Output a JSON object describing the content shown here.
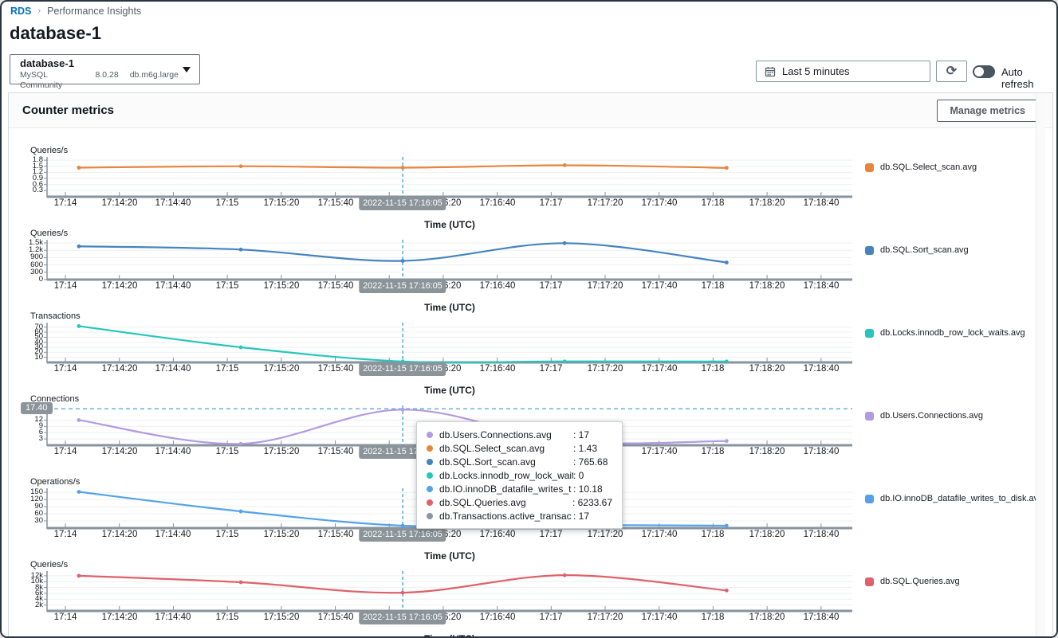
{
  "breadcrumb": {
    "rds": "RDS",
    "page": "Performance Insights"
  },
  "page_title": "database-1",
  "db_selector": {
    "name": "database-1",
    "engine": "MySQL Community",
    "version": "8.0.28",
    "instance_class": "db.m6g.large"
  },
  "controls": {
    "time_range": "Last 5 minutes",
    "auto_refresh_label": "Auto refresh",
    "auto_refresh_on": false
  },
  "panel": {
    "title": "Counter metrics",
    "manage_button": "Manage metrics"
  },
  "crosshair": {
    "time_label": "2022-11-15 17:16:05",
    "y_label": "17.40"
  },
  "tooltip": {
    "rows": [
      {
        "color": "#b29be0",
        "name": "db.Users.Connections.avg",
        "value": ": 17"
      },
      {
        "color": "#e8853d",
        "name": "db.SQL.Select_scan.avg",
        "value": ": 1.43"
      },
      {
        "color": "#4683bf",
        "name": "db.SQL.Sort_scan.avg",
        "value": ": 765.68"
      },
      {
        "color": "#26c6bd",
        "name": "db.Locks.innodb_row_lock_waits",
        "value": ": 0"
      },
      {
        "color": "#54a2ea",
        "name": "db.IO.innoDB_datafile_writes_t",
        "value": ": 10.18"
      },
      {
        "color": "#df616b",
        "name": "db.SQL.Queries.avg",
        "value": ": 6233.67"
      },
      {
        "color": "#8c96a8",
        "name": "db.Transactions.active_transac",
        "value": ": 17"
      }
    ]
  },
  "chart_data": {
    "type": "line",
    "xlabel": "Time (UTC)",
    "xtick_labels": [
      "17:14",
      "17:14:20",
      "17:14:40",
      "17:15",
      "17:15:20",
      "17:15:40",
      "17:16",
      "17:16:20",
      "17:16:40",
      "17:17",
      "17:17:20",
      "17:17:40",
      "17:18",
      "17:18:20",
      "17:18:40"
    ],
    "sample_times": [
      "17:14:05",
      "17:15:05",
      "17:16:05",
      "17:17:05",
      "17:18:05"
    ],
    "crosshair_time": "17:16:05",
    "list": [
      {
        "id": "select-scan",
        "ylabel": "Queries/s",
        "legend": "db.SQL.Select_scan.avg",
        "color": "#e8853d",
        "values": [
          1.43,
          1.5,
          1.43,
          1.55,
          1.42
        ],
        "yticks": [
          {
            "label": "1.8",
            "v": 1.8
          },
          {
            "label": "1.5",
            "v": 1.5
          },
          {
            "label": "1.2",
            "v": 1.2
          },
          {
            "label": "0.9",
            "v": 0.9
          },
          {
            "label": "0.6",
            "v": 0.6
          },
          {
            "label": "0.3",
            "v": 0.3
          }
        ],
        "ymax": 1.96,
        "ylim": [
          0,
          1.96
        ]
      },
      {
        "id": "sort-scan",
        "ylabel": "Queries/s",
        "legend": "db.SQL.Sort_scan.avg",
        "color": "#4683bf",
        "values": [
          1360,
          1230,
          765.68,
          1490,
          700
        ],
        "yticks": [
          {
            "label": "1.5k",
            "v": 1500
          },
          {
            "label": "1.2k",
            "v": 1200
          },
          {
            "label": "900",
            "v": 900
          },
          {
            "label": "600",
            "v": 600
          },
          {
            "label": "300",
            "v": 300
          },
          {
            "label": "0",
            "v": 0
          }
        ],
        "ymax": 1630,
        "ylim": [
          0,
          1630
        ]
      },
      {
        "id": "row-lock-waits",
        "ylabel": "Transactions",
        "legend": "db.Locks.innodb_row_lock_waits.avg",
        "color": "#26c6bd",
        "values": [
          72,
          30,
          0,
          2,
          1
        ],
        "yticks": [
          {
            "label": "70",
            "v": 70
          },
          {
            "label": "60",
            "v": 60
          },
          {
            "label": "50",
            "v": 50
          },
          {
            "label": "40",
            "v": 40
          },
          {
            "label": "30",
            "v": 30
          },
          {
            "label": "20",
            "v": 20
          },
          {
            "label": "10",
            "v": 10
          }
        ],
        "ymax": 79,
        "ylim": [
          0,
          79
        ]
      },
      {
        "id": "connections",
        "ylabel": "Connections",
        "legend": "db.Users.Connections.avg",
        "color": "#b29be0",
        "values": [
          12,
          0.7,
          17,
          2,
          2
        ],
        "yticks": [
          {
            "label": "12",
            "v": 12
          },
          {
            "label": "9",
            "v": 9
          },
          {
            "label": "6",
            "v": 6
          },
          {
            "label": "3",
            "v": 3
          }
        ],
        "ymax": 19,
        "ylim": [
          0,
          19
        ],
        "hline": 17.4
      },
      {
        "id": "io-writes",
        "ylabel": "Operations/s",
        "legend": "db.IO.innoDB_datafile_writes_to_disk.avg",
        "color": "#54a2ea",
        "values": [
          152,
          70,
          10.18,
          13,
          10
        ],
        "yticks": [
          {
            "label": "150",
            "v": 150
          },
          {
            "label": "120",
            "v": 120
          },
          {
            "label": "90",
            "v": 90
          },
          {
            "label": "60",
            "v": 60
          },
          {
            "label": "30",
            "v": 30
          }
        ],
        "ymax": 167,
        "ylim": [
          0,
          167
        ]
      },
      {
        "id": "sql-queries",
        "ylabel": "Queries/s",
        "legend": "db.SQL.Queries.avg",
        "color": "#df616b",
        "values": [
          12000,
          9800,
          6233.67,
          12200,
          7000
        ],
        "yticks": [
          {
            "label": "12k",
            "v": 12000
          },
          {
            "label": "10k",
            "v": 10000
          },
          {
            "label": "8k",
            "v": 8000
          },
          {
            "label": "6k",
            "v": 6000
          },
          {
            "label": "4k",
            "v": 4000
          },
          {
            "label": "2k",
            "v": 2000
          }
        ],
        "ymax": 13600,
        "ylim": [
          0,
          13600
        ]
      }
    ]
  }
}
